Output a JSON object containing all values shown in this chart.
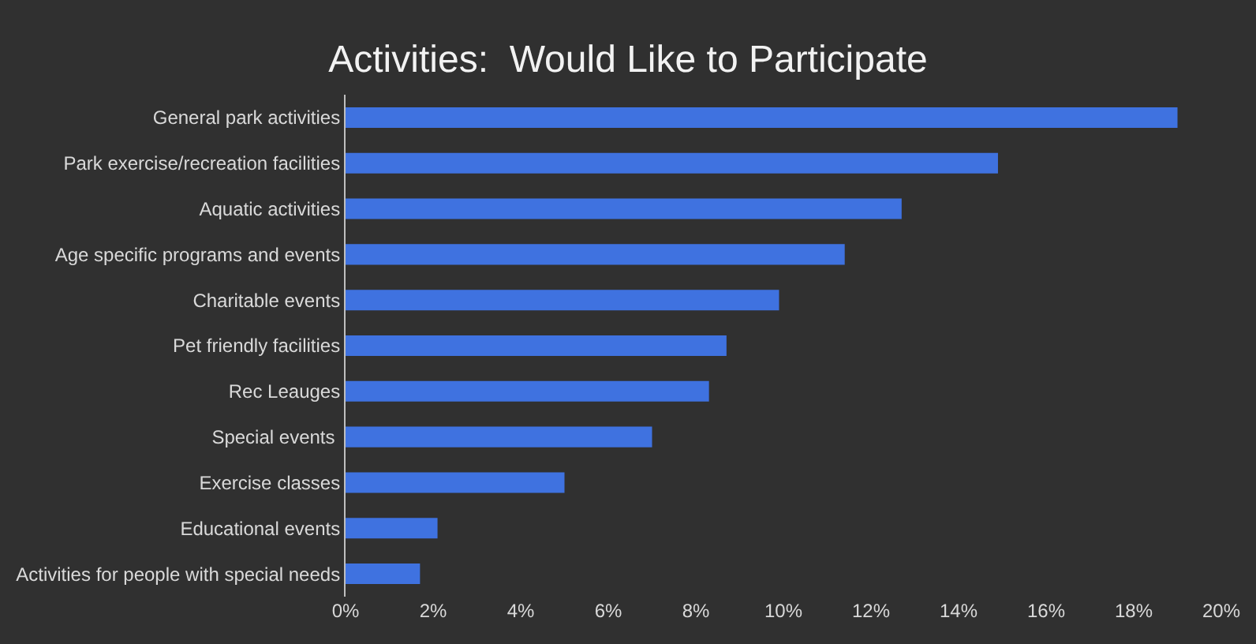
{
  "chart_data": {
    "type": "bar",
    "orientation": "horizontal",
    "title": "Activities:  Would Like to Participate",
    "categories": [
      "General park activities",
      "Park exercise/recreation facilities",
      "Aquatic activities",
      "Age specific programs and events",
      "Charitable events",
      "Pet friendly facilities",
      "Rec Leauges",
      "Special events ",
      "Exercise classes",
      "Educational events",
      "Activities for people with special needs"
    ],
    "values": [
      19.0,
      14.9,
      12.7,
      11.4,
      9.9,
      8.7,
      8.3,
      7.0,
      5.0,
      2.1,
      1.7
    ],
    "color": "#3f72e0",
    "xlim": [
      0,
      20
    ],
    "xticks": [
      {
        "value": 0,
        "label": "0%"
      },
      {
        "value": 2,
        "label": "2%"
      },
      {
        "value": 4,
        "label": "4%"
      },
      {
        "value": 6,
        "label": "6%"
      },
      {
        "value": 8,
        "label": "8%"
      },
      {
        "value": 10,
        "label": "10%"
      },
      {
        "value": 12,
        "label": "12%"
      },
      {
        "value": 14,
        "label": "14%"
      },
      {
        "value": 16,
        "label": "16%"
      },
      {
        "value": 18,
        "label": "18%"
      },
      {
        "value": 20,
        "label": "20%"
      }
    ],
    "grid": false
  }
}
